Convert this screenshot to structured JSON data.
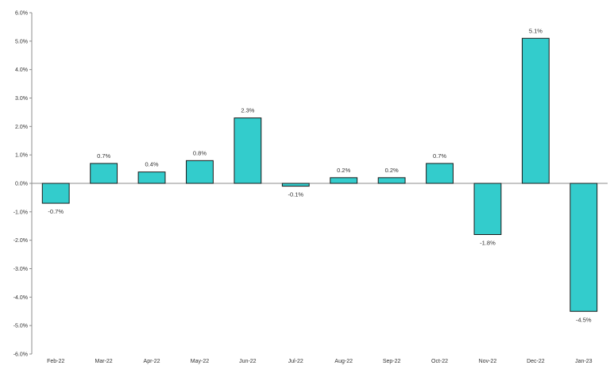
{
  "chart_data": {
    "type": "bar",
    "title": "",
    "xlabel": "",
    "ylabel": "",
    "categories": [
      "Feb-22",
      "Mar-22",
      "Apr-22",
      "May-22",
      "Jun-22",
      "Jul-22",
      "Aug-22",
      "Sep-22",
      "Oct-22",
      "Nov-22",
      "Dec-22",
      "Jan-23"
    ],
    "values": [
      -0.7,
      0.7,
      0.4,
      0.8,
      2.3,
      -0.1,
      0.2,
      0.2,
      0.7,
      -1.8,
      5.1,
      -4.5
    ],
    "value_labels": [
      "-0.7%",
      "0.7%",
      "0.4%",
      "0.8%",
      "2.3%",
      "-0.1%",
      "0.2%",
      "0.2%",
      "0.7%",
      "-1.8%",
      "5.1%",
      "-4.5%"
    ],
    "ylim": [
      -6,
      6
    ],
    "yticks": [
      6,
      5,
      4,
      3,
      2,
      1,
      0,
      -1,
      -2,
      -3,
      -4,
      -5,
      -6
    ],
    "ytick_labels": [
      "6.0%",
      "5.0%",
      "4.0%",
      "3.0%",
      "2.0%",
      "1.0%",
      "0.0%",
      "-1.0%",
      "-2.0%",
      "-3.0%",
      "-4.0%",
      "-5.0%",
      "-6.0%"
    ],
    "grid": false,
    "legend": "none",
    "colors": {
      "bar_fill": "#33CCCC",
      "bar_stroke": "#1a1a1a",
      "axis": "#8c8c8c"
    }
  }
}
